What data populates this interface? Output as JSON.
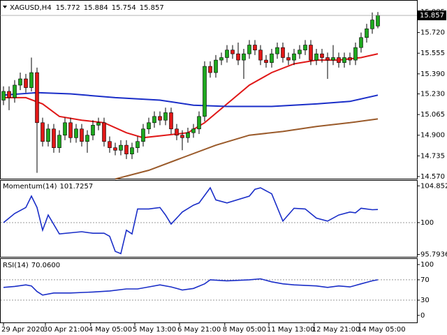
{
  "chart_data": {
    "type": "candlestick",
    "symbol": "XAGUSD,H4",
    "up_color": "#1ea81e",
    "down_color": "#e01818",
    "open": [
      15.18,
      15.25,
      15.2,
      15.3,
      15.35,
      15.28,
      15.4,
      15.0,
      14.85,
      14.95,
      14.8,
      14.9,
      15.0,
      14.88,
      14.95,
      14.85,
      14.9,
      14.98,
      15.0,
      14.85,
      14.8,
      14.78,
      14.82,
      14.75,
      14.8,
      14.85,
      14.95,
      15.0,
      15.05,
      15.02,
      15.08,
      14.95,
      14.9,
      14.88,
      14.92,
      14.95,
      15.05,
      15.45,
      15.4,
      15.5,
      15.52,
      15.58,
      15.55,
      15.5,
      15.55,
      15.62,
      15.58,
      15.5,
      15.48,
      15.55,
      15.6,
      15.52,
      15.5,
      15.55,
      15.58,
      15.62,
      15.5,
      15.55,
      15.52,
      15.5,
      15.52,
      15.48,
      15.52,
      15.5,
      15.6,
      15.68,
      15.75,
      15.772
    ],
    "high": [
      15.29,
      15.29,
      15.34,
      15.4,
      15.39,
      15.52,
      15.44,
      15.04,
      14.99,
      14.99,
      14.94,
      15.04,
      15.04,
      14.99,
      14.99,
      14.94,
      15.02,
      15.04,
      15.04,
      14.89,
      14.84,
      14.86,
      14.86,
      14.84,
      14.89,
      14.99,
      15.04,
      15.09,
      15.09,
      15.12,
      15.12,
      14.99,
      14.94,
      14.96,
      14.99,
      15.09,
      15.49,
      15.49,
      15.54,
      15.56,
      15.62,
      15.62,
      15.64,
      15.59,
      15.66,
      15.66,
      15.62,
      15.54,
      15.59,
      15.64,
      15.64,
      15.56,
      15.59,
      15.62,
      15.66,
      15.66,
      15.59,
      15.59,
      15.56,
      15.62,
      15.56,
      15.56,
      15.56,
      15.64,
      15.72,
      15.79,
      15.88,
      15.884
    ],
    "low": [
      15.14,
      15.1,
      15.16,
      15.26,
      15.24,
      15.25,
      14.6,
      14.81,
      14.81,
      14.76,
      14.76,
      14.86,
      14.84,
      14.84,
      14.81,
      14.76,
      14.86,
      14.94,
      14.81,
      14.76,
      14.74,
      14.74,
      14.71,
      14.71,
      14.76,
      14.81,
      14.91,
      14.96,
      14.98,
      14.98,
      14.91,
      14.86,
      14.78,
      14.84,
      14.88,
      14.91,
      15.01,
      15.36,
      15.36,
      15.46,
      15.48,
      15.51,
      15.46,
      15.35,
      15.51,
      15.54,
      15.46,
      15.44,
      15.44,
      15.51,
      15.48,
      15.46,
      15.46,
      15.51,
      15.54,
      15.46,
      15.46,
      15.48,
      15.35,
      15.46,
      15.44,
      15.44,
      15.46,
      15.46,
      15.56,
      15.64,
      15.71,
      15.754
    ],
    "close": [
      15.25,
      15.2,
      15.3,
      15.35,
      15.28,
      15.4,
      15.0,
      14.85,
      14.95,
      14.8,
      14.9,
      15.0,
      14.88,
      14.95,
      14.85,
      14.9,
      14.98,
      15.0,
      14.85,
      14.8,
      14.78,
      14.82,
      14.75,
      14.8,
      14.85,
      14.95,
      15.0,
      15.05,
      15.02,
      15.08,
      14.95,
      14.9,
      14.88,
      14.92,
      14.95,
      15.05,
      15.45,
      15.4,
      15.5,
      15.52,
      15.58,
      15.55,
      15.5,
      15.55,
      15.62,
      15.58,
      15.5,
      15.48,
      15.55,
      15.6,
      15.52,
      15.5,
      15.55,
      15.58,
      15.62,
      15.5,
      15.55,
      15.52,
      15.5,
      15.52,
      15.48,
      15.52,
      15.5,
      15.6,
      15.68,
      15.75,
      15.82,
      15.857
    ],
    "ylim": [
      14.553,
      15.952
    ],
    "yticks": [
      15.885,
      {
        "value": 15.72,
        "label": "15.720"
      },
      15.555,
      {
        "value": 15.39,
        "label": "15.390"
      },
      {
        "value": 15.23,
        "label": "15.230"
      },
      15.065,
      {
        "value": 14.9,
        "label": "14.900"
      },
      14.735,
      {
        "value": 14.57,
        "label": "14.570"
      }
    ],
    "moving_averages": [
      {
        "color": "#e01818",
        "x": [
          0,
          4,
          7,
          10,
          14,
          18,
          22,
          25,
          29,
          33,
          36,
          40,
          44,
          48,
          52,
          56,
          60,
          64,
          67
        ],
        "values": [
          15.2,
          15.2,
          15.15,
          15.05,
          15.02,
          15.0,
          14.92,
          14.88,
          14.9,
          14.92,
          15.0,
          15.15,
          15.3,
          15.4,
          15.47,
          15.5,
          15.5,
          15.52,
          15.55
        ]
      },
      {
        "color": "#1a2ec8",
        "x": [
          0,
          6,
          12,
          20,
          28,
          34,
          40,
          48,
          56,
          62,
          67
        ],
        "values": [
          15.22,
          15.24,
          15.23,
          15.2,
          15.18,
          15.14,
          15.13,
          15.13,
          15.15,
          15.17,
          15.22
        ]
      },
      {
        "color": "#9a5a2a",
        "x": [
          20,
          26,
          32,
          38,
          44,
          50,
          56,
          62,
          67
        ],
        "values": [
          14.55,
          14.62,
          14.72,
          14.82,
          14.9,
          14.93,
          14.97,
          15.0,
          15.03
        ]
      }
    ],
    "xticks": [
      {
        "value": 0,
        "label": "29 Apr 2020"
      },
      {
        "value": 7.5,
        "label": "30 Apr 21:00"
      },
      {
        "value": 15.6,
        "label": "4 May 05:00"
      },
      {
        "value": 23.5,
        "label": "5 May 13:00"
      },
      {
        "value": 31.5,
        "label": "6 May 21:00"
      },
      {
        "value": 39.6,
        "label": "8 May 05:00"
      },
      {
        "value": 47.5,
        "label": "11 May 13:00"
      },
      {
        "value": 55.6,
        "label": "12 May 21:00"
      },
      {
        "value": 63.75,
        "label": "14 May 05:00"
      }
    ],
    "indicators": [
      {
        "type": "line",
        "name": "Momentum(14)",
        "color": "#1a2ec8",
        "x": [
          0,
          2,
          4,
          5,
          6,
          7,
          8,
          10,
          14,
          16,
          18,
          19,
          20,
          21,
          22,
          23,
          24,
          26,
          28,
          29,
          30,
          32,
          34,
          35,
          37,
          38,
          40,
          44,
          45,
          46,
          48,
          50,
          52,
          54,
          56,
          58,
          60,
          62,
          63,
          64,
          66,
          67
        ],
        "values": [
          100,
          101.2,
          102,
          103.5,
          102,
          99,
          101,
          98.5,
          98.8,
          98.6,
          98.6,
          98.2,
          96.2,
          95.9,
          99,
          98.5,
          101.8,
          101.8,
          102,
          101,
          99.8,
          101.4,
          102.3,
          102.6,
          104.6,
          103,
          102.6,
          103.5,
          104.4,
          104.6,
          103.8,
          100.2,
          101.9,
          101.8,
          100.6,
          100.2,
          101.0,
          101.4,
          101.3,
          101.9,
          101.7,
          101.7257
        ],
        "ylim": [
          95.48,
          105.62
        ],
        "yticks": [
          104.8522,
          100,
          95.7936
        ],
        "levels": [
          100
        ]
      },
      {
        "type": "line",
        "name": "RSI(14)",
        "color": "#1a2ec8",
        "x": [
          0,
          2,
          4,
          5,
          6,
          7,
          9,
          12,
          16,
          19,
          22,
          24,
          26,
          28,
          30,
          32,
          34,
          36,
          37,
          40,
          44,
          46,
          48,
          50,
          52,
          56,
          58,
          60,
          62,
          64,
          66,
          67
        ],
        "values": [
          55,
          57,
          60,
          58,
          47,
          40,
          44,
          44,
          46,
          48,
          52,
          52,
          56,
          60,
          56,
          50,
          53,
          62,
          70,
          68,
          70,
          72,
          66,
          62,
          60,
          58,
          55,
          58,
          56,
          62,
          68,
          70.06
        ],
        "value_labels": {
          "31": "70.0600"
        },
        "ylim": [
          -13.9,
          111.1
        ],
        "yticks": [
          100,
          70,
          30,
          0
        ],
        "levels": [
          70,
          30
        ]
      }
    ]
  }
}
